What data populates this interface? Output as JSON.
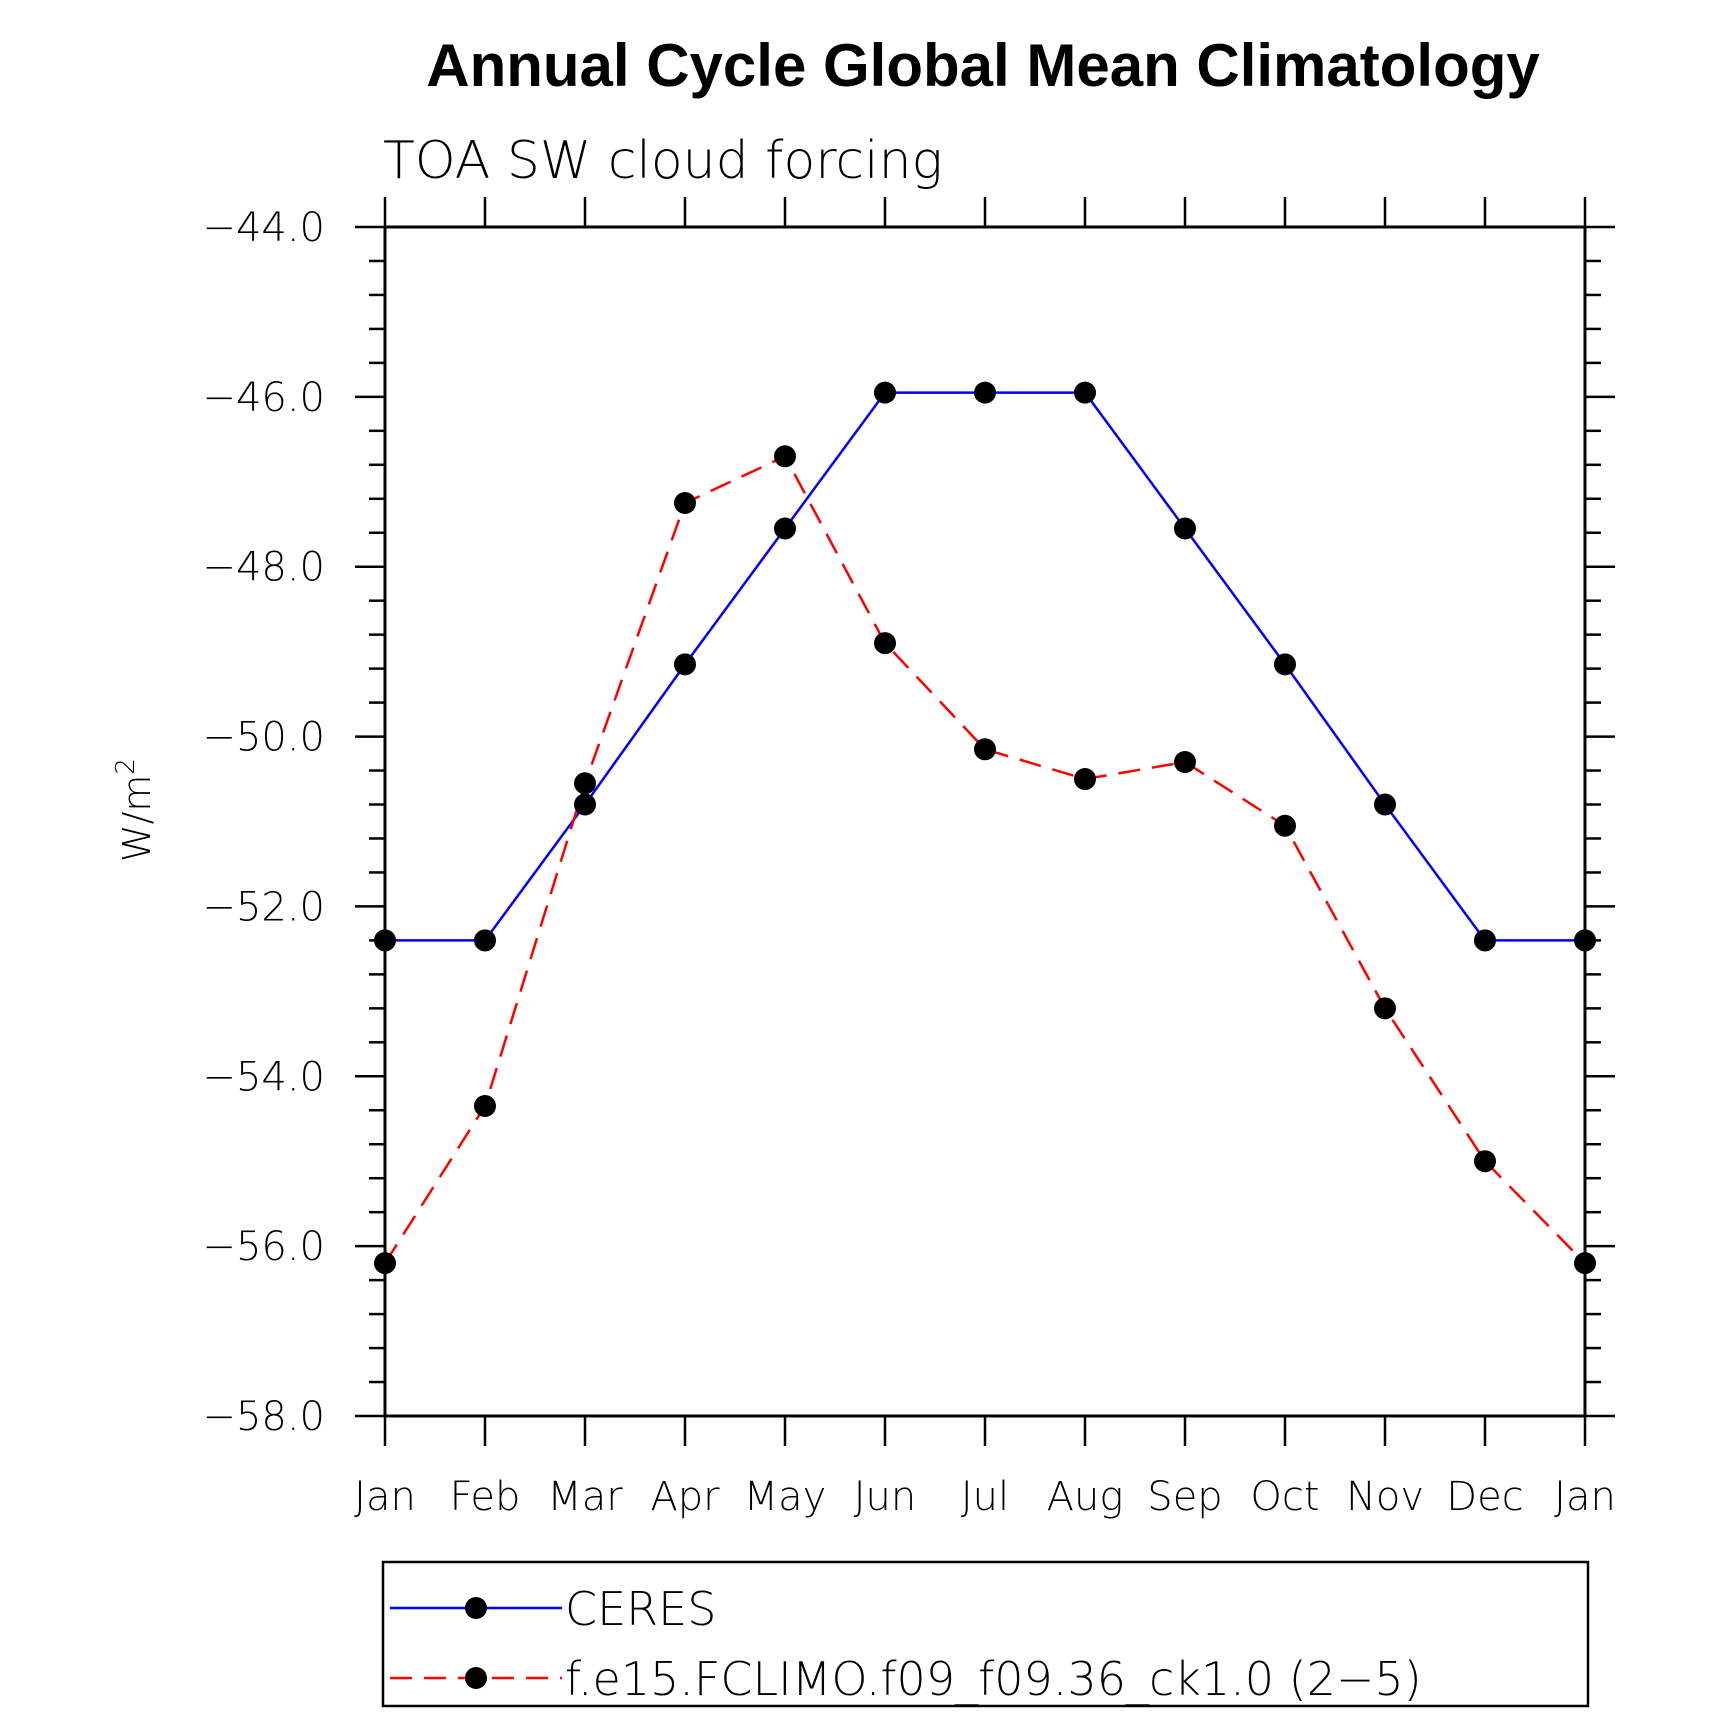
{
  "chart_data": {
    "type": "line",
    "title": "Annual Cycle Global Mean Climatology",
    "subtitle": "TOA SW cloud forcing",
    "ylabel_base": "W/m",
    "ylabel_sup": "2",
    "xlabel": "",
    "categories": [
      "Jan",
      "Feb",
      "Mar",
      "Apr",
      "May",
      "Jun",
      "Jul",
      "Aug",
      "Sep",
      "Oct",
      "Nov",
      "Dec",
      "Jan"
    ],
    "ylim": [
      -58.0,
      -44.0
    ],
    "yticks": [
      "-44.0",
      "-46.0",
      "-48.0",
      "-50.0",
      "-52.0",
      "-54.0",
      "-56.0",
      "-58.0"
    ],
    "legend_placement": "bottom",
    "series": [
      {
        "name": "CERES",
        "color": "#0000ff",
        "style": "solid",
        "marker": "filled-circle",
        "values": [
          -52.4,
          -52.4,
          -50.8,
          -49.15,
          -47.55,
          -45.95,
          -45.95,
          -45.95,
          -47.55,
          -49.15,
          -50.8,
          -52.4,
          -52.4
        ]
      },
      {
        "name": "f.e15.FCLIMO.f09_f09.36_ck1.0 (2−5)",
        "color": "#ff0000",
        "style": "dashed",
        "marker": "filled-circle",
        "values": [
          -56.2,
          -54.35,
          -50.55,
          -47.25,
          -46.7,
          -48.9,
          -50.15,
          -50.5,
          -50.3,
          -51.05,
          -53.2,
          -55.0,
          -56.2
        ]
      }
    ]
  }
}
